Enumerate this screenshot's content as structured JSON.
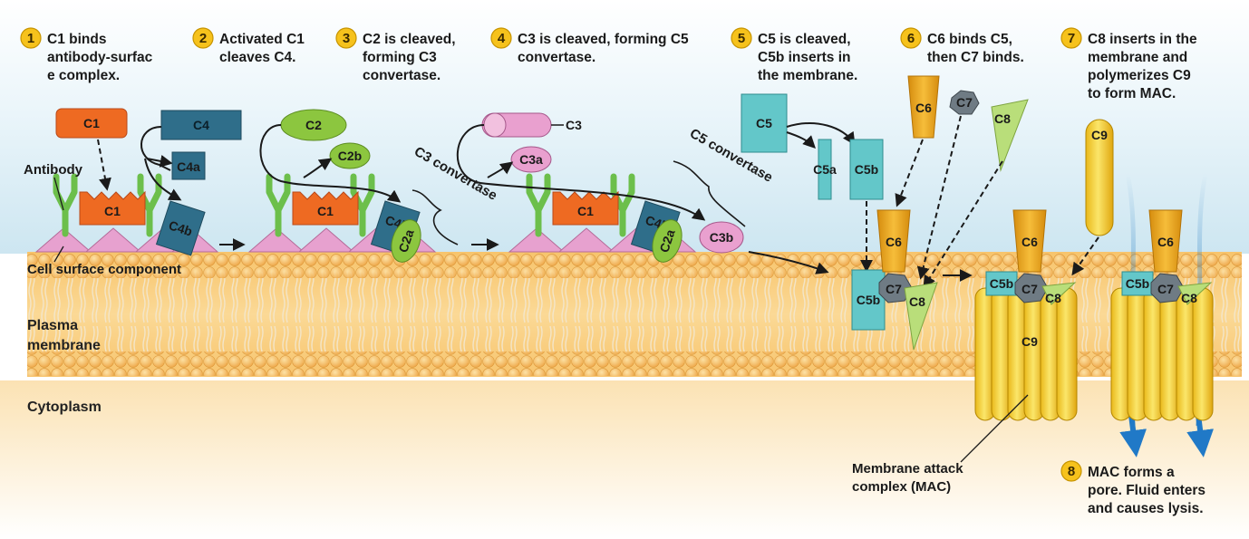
{
  "steps": [
    {
      "num": "1",
      "lines": [
        "C1 binds",
        "antibody-surfac",
        "e complex."
      ]
    },
    {
      "num": "2",
      "lines": [
        "Activated C1",
        "cleaves C4."
      ]
    },
    {
      "num": "3",
      "lines": [
        "C2 is cleaved,",
        "forming C3",
        "convertase."
      ]
    },
    {
      "num": "4",
      "lines": [
        "C3 is cleaved, forming C5",
        "convertase."
      ]
    },
    {
      "num": "5",
      "lines": [
        "C5 is cleaved,",
        "C5b inserts in",
        "the membrane."
      ]
    },
    {
      "num": "6",
      "lines": [
        "C6 binds C5,",
        "then C7 binds."
      ]
    },
    {
      "num": "7",
      "lines": [
        "C8 inserts in the",
        "membrane and",
        "polymerizes C9",
        "to form MAC."
      ]
    },
    {
      "num": "8",
      "lines": [
        "MAC forms a",
        "pore. Fluid enters",
        "and causes lysis."
      ]
    }
  ],
  "labels": {
    "antibody": "Antibody",
    "cell_surface_component": "Cell surface component",
    "plasma_membrane_1": "Plasma",
    "plasma_membrane_2": "membrane",
    "cytoplasm": "Cytoplasm",
    "mac_1": "Membrane attack",
    "mac_2": "complex (MAC)",
    "c3_convertase": "C3 convertase",
    "c5_convertase": "C5 convertase"
  },
  "proteins": {
    "c1": "C1",
    "c2": "C2",
    "c2a": "C2a",
    "c2b": "C2b",
    "c3": "C3",
    "c3a": "C3a",
    "c3b": "C3b",
    "c4": "C4",
    "c4a": "C4a",
    "c4b": "C4b",
    "c5": "C5",
    "c5a": "C5a",
    "c5b": "C5b",
    "c6": "C6",
    "c7": "C7",
    "c8": "C8",
    "c9": "C9"
  },
  "colors": {
    "step_badge": "#f6c21c",
    "c1": "#ee6a22",
    "c4": "#2f6e8a",
    "c2": "#8cc63f",
    "c3": "#e9a0cf",
    "c5": "#63c7c9",
    "c6": "#e9a31a",
    "c7": "#6f7b84",
    "c8": "#b9de7a",
    "c9": "#f4d23a",
    "antibody": "#6cbf4b",
    "surface_component": "#e7a1cf",
    "membrane": "#f3b85a"
  }
}
